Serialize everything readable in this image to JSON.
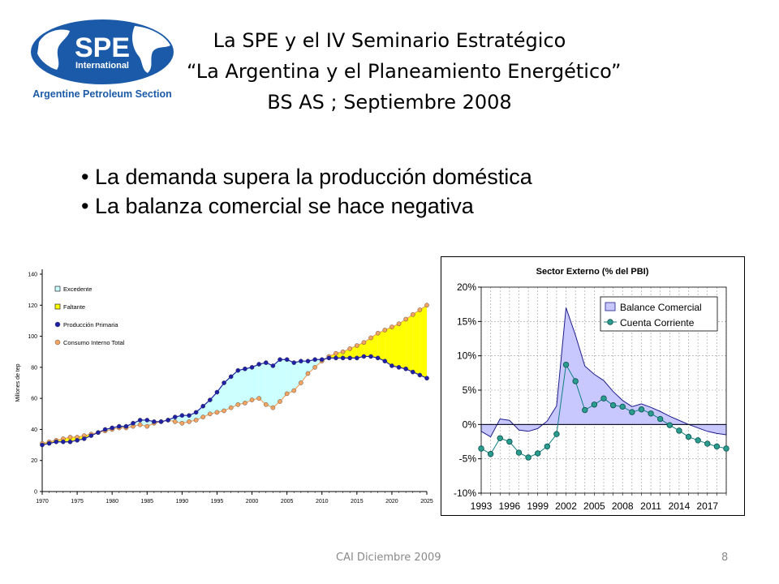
{
  "logo": {
    "main_text": "SPE",
    "sub_text": "International",
    "section_text": "Argentine Petroleum Section",
    "colors": {
      "blue": "#1b5aa8"
    }
  },
  "header": {
    "title_lines": [
      "La SPE y el IV Seminario Estratégico",
      "“La Argentina y el Planeamiento Energético”",
      "BS AS ; Septiembre 2008"
    ]
  },
  "bullets": [
    "La demanda supera la producción doméstica",
    "La balanza comercial se hace negativa"
  ],
  "footer": {
    "left_text": "CAI Diciembre 2009",
    "page_number": "8"
  },
  "chart_data": [
    {
      "type": "line",
      "title": "",
      "xlabel": "",
      "ylabel": "Millones de tep",
      "xlim": [
        1970,
        2025
      ],
      "ylim": [
        0,
        140
      ],
      "yticks": [
        0,
        20,
        40,
        60,
        80,
        100,
        120,
        140
      ],
      "xticks": [
        1970,
        1975,
        1980,
        1985,
        1990,
        1995,
        2000,
        2005,
        2010,
        2015,
        2020,
        2025
      ],
      "grid": false,
      "legend_position": "top-left",
      "legend": [
        {
          "label": "Excedente",
          "marker": "square",
          "color": "#ccffff"
        },
        {
          "label": "Faltante",
          "marker": "square",
          "color": "#ffff00"
        },
        {
          "label": "Producción Primaria",
          "marker": "circle",
          "color": "#1f1fa8"
        },
        {
          "label": "Consumo Interno Total",
          "marker": "circle",
          "color": "#f4a460"
        }
      ],
      "x": [
        1970,
        1971,
        1972,
        1973,
        1974,
        1975,
        1976,
        1977,
        1978,
        1979,
        1980,
        1981,
        1982,
        1983,
        1984,
        1985,
        1986,
        1987,
        1988,
        1989,
        1990,
        1991,
        1992,
        1993,
        1994,
        1995,
        1996,
        1997,
        1998,
        1999,
        2000,
        2001,
        2002,
        2003,
        2004,
        2005,
        2006,
        2007,
        2008,
        2009,
        2010,
        2011,
        2012,
        2013,
        2014,
        2015,
        2016,
        2017,
        2018,
        2019,
        2020,
        2021,
        2022,
        2023,
        2024,
        2025
      ],
      "series": [
        {
          "name": "Producción Primaria",
          "color": "#1f1fa8",
          "values": [
            30,
            31,
            32,
            32,
            32,
            33,
            34,
            36,
            38,
            40,
            41,
            42,
            42,
            44,
            46,
            46,
            45,
            45,
            46,
            48,
            49,
            49,
            51,
            55,
            59,
            64,
            70,
            74,
            78,
            79,
            80,
            82,
            83,
            81,
            85,
            85,
            83,
            84,
            84,
            85,
            85,
            86,
            86,
            86,
            86,
            86,
            87,
            87,
            86,
            84,
            81,
            80,
            79,
            77,
            75,
            73
          ]
        },
        {
          "name": "Consumo Interno Total",
          "color": "#f4a460",
          "values": [
            31,
            32,
            33,
            34,
            35,
            35,
            36,
            37,
            38,
            39,
            40,
            41,
            41,
            42,
            43,
            42,
            44,
            45,
            46,
            45,
            44,
            45,
            46,
            48,
            50,
            51,
            52,
            54,
            56,
            57,
            59,
            60,
            56,
            54,
            58,
            63,
            65,
            70,
            76,
            80,
            84,
            87,
            89,
            90,
            92,
            94,
            96,
            99,
            102,
            104,
            106,
            108,
            111,
            114,
            117,
            120
          ]
        }
      ],
      "filled_areas": [
        {
          "name": "Excedente",
          "between": [
            "Producción Primaria",
            "Consumo Interno Total"
          ],
          "color": "#ccffff"
        },
        {
          "name": "Faltante",
          "between": [
            "Consumo Interno Total",
            "Producción Primaria"
          ],
          "color": "#ffff00"
        }
      ]
    },
    {
      "type": "line",
      "title": "Sector Externo (% del PBI)",
      "xlabel": "",
      "ylabel": "",
      "xlim": [
        1993,
        2019
      ],
      "ylim": [
        -10,
        20
      ],
      "yticks": [
        -10,
        -5,
        0,
        5,
        10,
        15,
        20
      ],
      "ytick_labels": [
        "-10%",
        "-5%",
        "0%",
        "5%",
        "10%",
        "15%",
        "20%"
      ],
      "xticks": [
        1993,
        1996,
        1999,
        2002,
        2005,
        2008,
        2011,
        2014,
        2017
      ],
      "grid": true,
      "legend_position": "top-right",
      "x": [
        1993,
        1994,
        1995,
        1996,
        1997,
        1998,
        1999,
        2000,
        2001,
        2002,
        2003,
        2004,
        2005,
        2006,
        2007,
        2008,
        2009,
        2010,
        2011,
        2012,
        2013,
        2014,
        2015,
        2016,
        2017,
        2018,
        2019
      ],
      "series": [
        {
          "name": "Balance Comercial",
          "style": "area",
          "color": "#c8c8ff",
          "values": [
            -1,
            -1.8,
            0.8,
            0.6,
            -0.8,
            -1,
            -0.6,
            0.5,
            2.7,
            17,
            13,
            8.5,
            7.3,
            6.4,
            4.8,
            3.5,
            2.6,
            3,
            2.5,
            1.9,
            1.2,
            0.6,
            0,
            -0.5,
            -1,
            -1.3,
            -1.5
          ]
        },
        {
          "name": "Cuenta Corriente",
          "style": "line-markers",
          "color": "#0f7f7f",
          "values": [
            -3.5,
            -4.3,
            -2,
            -2.5,
            -4.1,
            -4.8,
            -4.2,
            -3.2,
            -1.4,
            8.7,
            6.3,
            2.1,
            2.9,
            3.8,
            2.8,
            2.6,
            1.8,
            2.2,
            1.6,
            0.8,
            -0.1,
            -0.9,
            -1.8,
            -2.3,
            -2.8,
            -3.2,
            -3.5
          ]
        }
      ]
    }
  ]
}
